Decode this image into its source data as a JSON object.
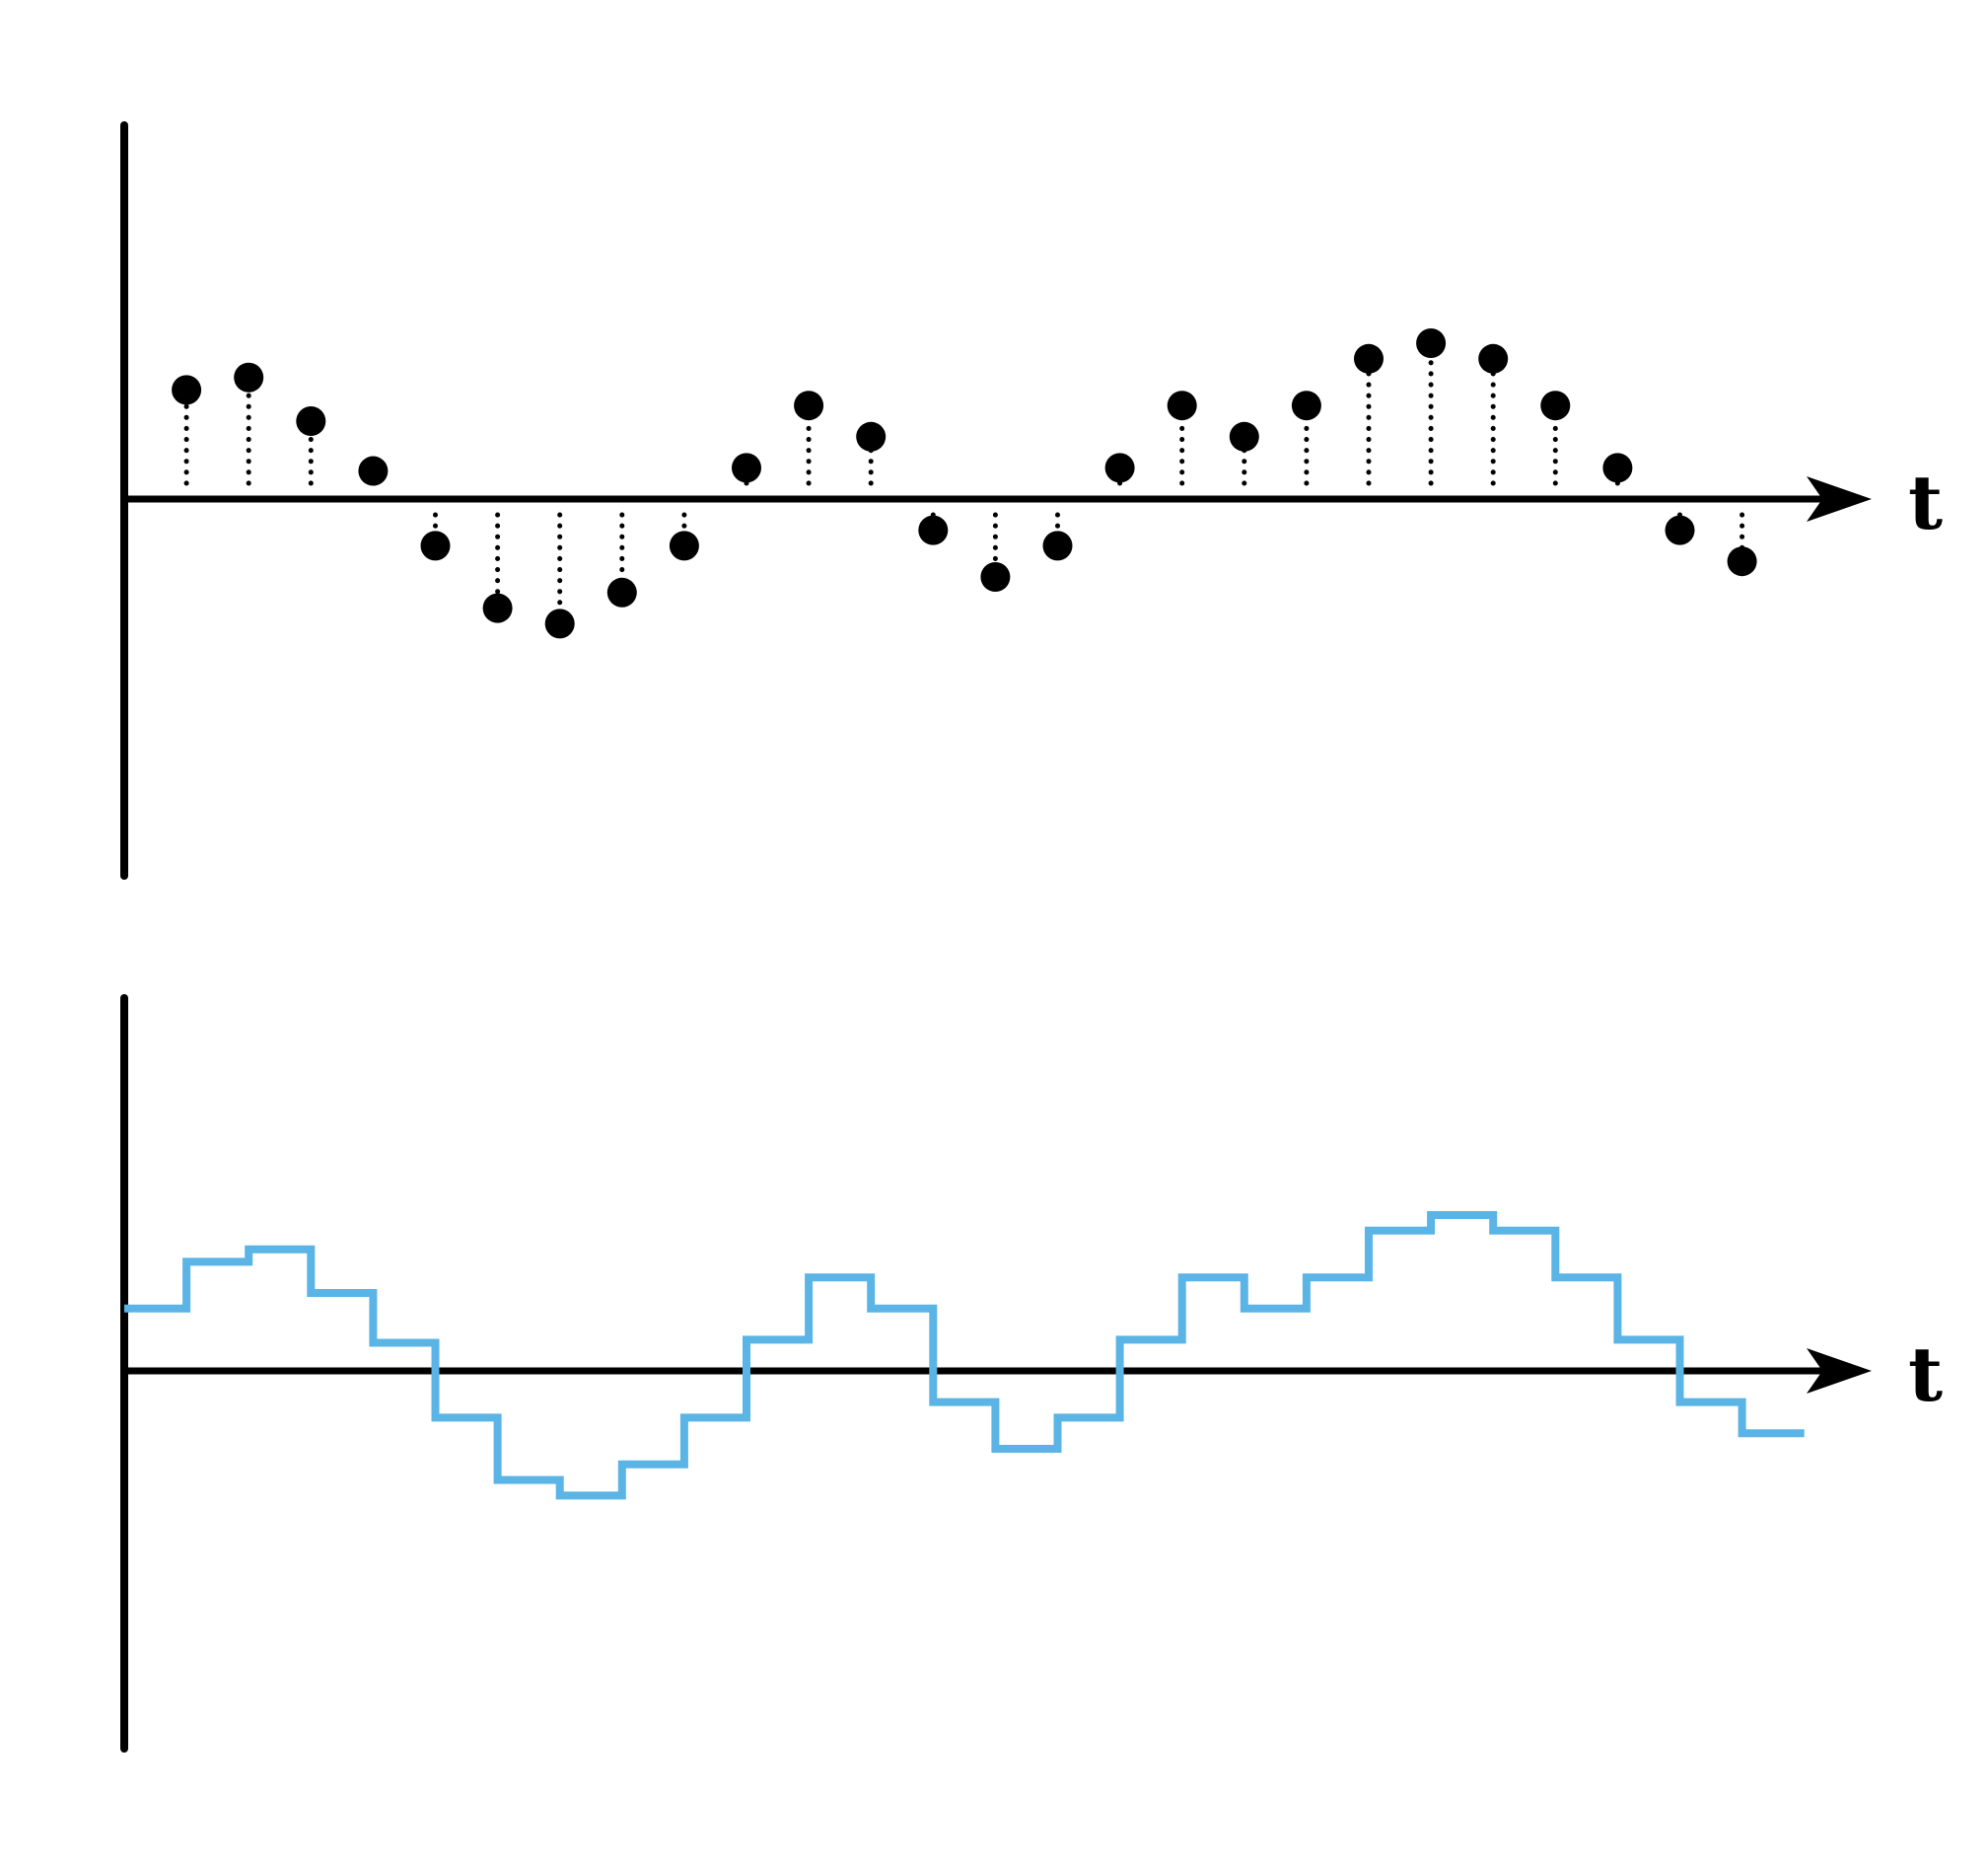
{
  "colors": {
    "axis": "#000000",
    "samples": "#000000",
    "reconstruction": "#5ab4e5",
    "background": "#ffffff"
  },
  "chart_data": [
    {
      "type": "scatter",
      "style": "stem-dotted",
      "xlabel": "t",
      "ylabel": "",
      "title": "",
      "x": [
        1,
        2,
        3,
        4,
        5,
        6,
        7,
        8,
        9,
        10,
        11,
        12,
        13,
        14,
        15,
        16,
        17,
        18,
        19,
        20,
        21,
        22,
        23,
        24,
        25,
        26
      ],
      "values": [
        3.5,
        3.9,
        2.5,
        0.9,
        -1.5,
        -3.5,
        -4.0,
        -3.0,
        -1.5,
        1.0,
        3.0,
        2.0,
        -1.0,
        -2.5,
        -1.5,
        1.0,
        3.0,
        2.0,
        3.0,
        4.5,
        5.0,
        4.5,
        3.0,
        1.0,
        -1.0,
        -2.0
      ],
      "xlim": [
        0,
        27.8
      ],
      "ylim": [
        -6,
        6
      ]
    },
    {
      "type": "line",
      "style": "step",
      "xlabel": "t",
      "ylabel": "",
      "title": "",
      "x": [
        0,
        1,
        2,
        3,
        4,
        5,
        6,
        7,
        8,
        9,
        10,
        11,
        12,
        13,
        14,
        15,
        16,
        17,
        18,
        19,
        20,
        21,
        22,
        23,
        24,
        25,
        26
      ],
      "values": [
        2.0,
        3.5,
        3.9,
        2.5,
        0.9,
        -1.5,
        -3.5,
        -4.0,
        -3.0,
        -1.5,
        1.0,
        3.0,
        2.0,
        -1.0,
        -2.5,
        -1.5,
        1.0,
        3.0,
        2.0,
        3.0,
        4.5,
        5.0,
        4.5,
        3.0,
        1.0,
        -1.0,
        -2.0
      ],
      "x_end": 27,
      "xlim": [
        0,
        27.8
      ],
      "ylim": [
        -6,
        6
      ]
    }
  ]
}
